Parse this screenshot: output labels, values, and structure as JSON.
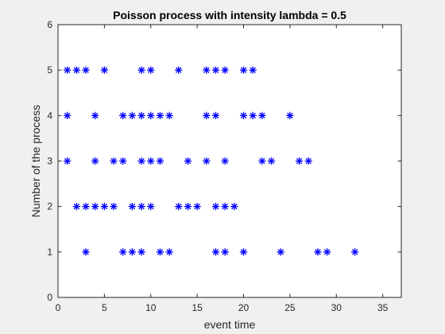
{
  "chart_data": {
    "type": "scatter",
    "title": "Poisson process with intensity lambda = 0.5",
    "xlabel": "event time",
    "ylabel": "Number of the process",
    "xlim": [
      0,
      37
    ],
    "ylim": [
      0,
      6
    ],
    "xticks": [
      "0",
      "5",
      "10",
      "15",
      "20",
      "25",
      "30",
      "35"
    ],
    "yticks": [
      "0",
      "1",
      "2",
      "3",
      "4",
      "5",
      "6"
    ],
    "marker": "asterisk",
    "marker_color": "#0000ff",
    "grid": false,
    "legend": "none",
    "series": [
      {
        "y": 1,
        "x": [
          3,
          7,
          8,
          9,
          11,
          12,
          17,
          18,
          20,
          24,
          28,
          29,
          32
        ]
      },
      {
        "y": 2,
        "x": [
          2,
          3,
          4,
          5,
          6,
          8,
          9,
          10,
          13,
          14,
          15,
          17,
          18,
          19
        ]
      },
      {
        "y": 3,
        "x": [
          1,
          4,
          6,
          7,
          9,
          10,
          11,
          14,
          16,
          18,
          22,
          23,
          26,
          27
        ]
      },
      {
        "y": 4,
        "x": [
          1,
          4,
          7,
          8,
          9,
          10,
          11,
          12,
          16,
          17,
          20,
          21,
          22,
          25
        ]
      },
      {
        "y": 5,
        "x": [
          1,
          2,
          3,
          5,
          9,
          10,
          13,
          16,
          17,
          18,
          20,
          21
        ]
      }
    ]
  }
}
